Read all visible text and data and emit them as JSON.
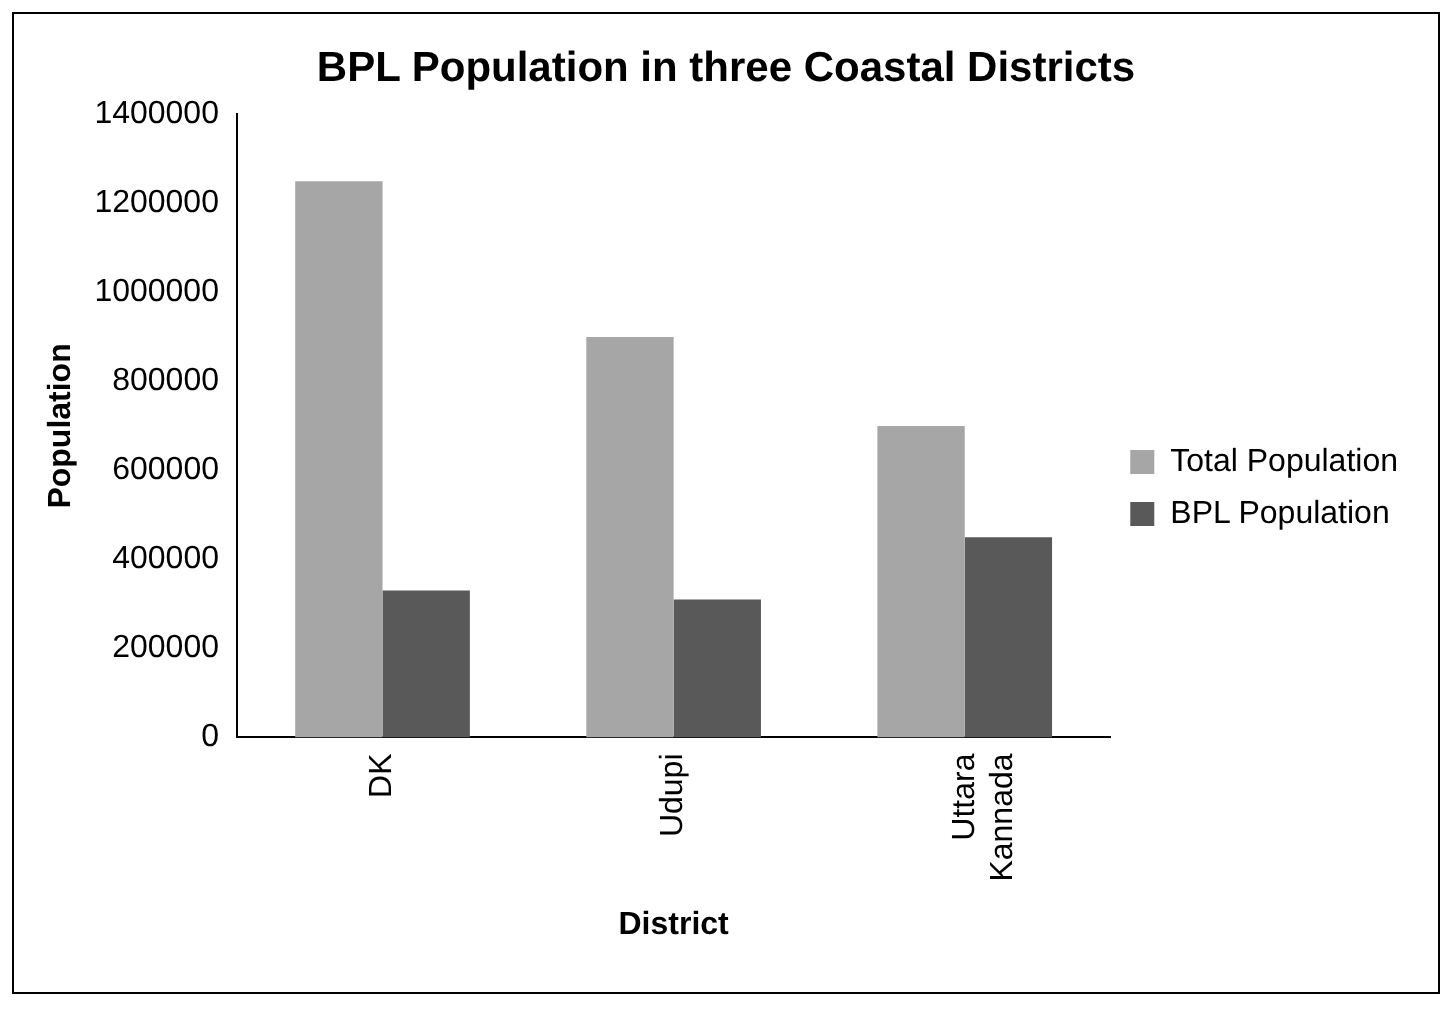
{
  "chart_data": {
    "type": "bar",
    "title": "BPL Population in three Coastal Districts",
    "xlabel": "District",
    "ylabel": "Population",
    "categories": [
      "DK",
      "Udupi",
      "Uttara Kannada"
    ],
    "series": [
      {
        "name": "Total Population",
        "color": "#a6a6a6",
        "values": [
          1250000,
          900000,
          700000
        ]
      },
      {
        "name": "BPL Population",
        "color": "#595959",
        "values": [
          330000,
          310000,
          450000
        ]
      }
    ],
    "ylim": [
      0,
      1400000
    ],
    "yticks": [
      0,
      200000,
      400000,
      600000,
      800000,
      1000000,
      1200000,
      1400000
    ],
    "grid": false,
    "legend": "right"
  }
}
